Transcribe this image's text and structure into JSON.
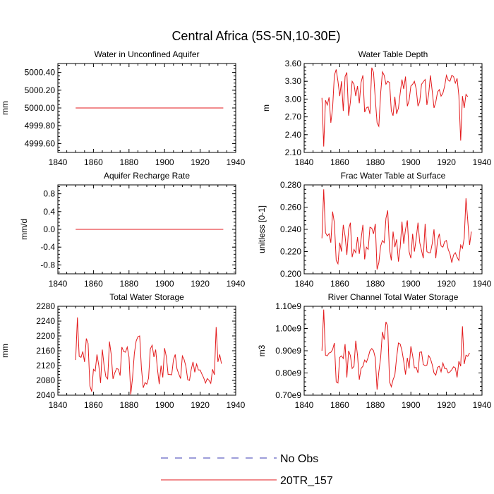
{
  "figure": {
    "title": "Central Africa (5S-5N,10-30E)",
    "legend": [
      {
        "label": "No Obs",
        "color": "#3b3bb3",
        "dash": true
      },
      {
        "label": "20TR_157",
        "color": "#e31a1c",
        "dash": false
      }
    ]
  },
  "chart_data": [
    {
      "type": "line",
      "title": "Water in Unconfined Aquifer",
      "ylabel": "mm",
      "xlim": [
        1840,
        1940
      ],
      "ylim": [
        4999.5,
        5000.5
      ],
      "xticks": [
        "1840",
        "1860",
        "1880",
        "1900",
        "1920",
        "1940"
      ],
      "yticks": [
        "4999.60",
        "4999.80",
        "5000.00",
        "5000.20",
        "5000.40"
      ],
      "ytick_values": [
        4999.6,
        4999.8,
        5000.0,
        5000.2,
        5000.4
      ],
      "series": [
        {
          "name": "20TR_157",
          "x_start": 1850,
          "x_step": 1,
          "values": [
            5000,
            5000,
            5000,
            5000,
            5000,
            5000,
            5000,
            5000,
            5000,
            5000,
            5000,
            5000,
            5000,
            5000,
            5000,
            5000,
            5000,
            5000,
            5000,
            5000,
            5000,
            5000,
            5000,
            5000,
            5000,
            5000,
            5000,
            5000,
            5000,
            5000,
            5000,
            5000,
            5000,
            5000,
            5000,
            5000,
            5000,
            5000,
            5000,
            5000,
            5000,
            5000,
            5000,
            5000,
            5000,
            5000,
            5000,
            5000,
            5000,
            5000,
            5000,
            5000,
            5000,
            5000,
            5000,
            5000,
            5000,
            5000,
            5000,
            5000,
            5000,
            5000,
            5000,
            5000,
            5000,
            5000,
            5000,
            5000,
            5000,
            5000,
            5000,
            5000,
            5000,
            5000,
            5000,
            5000,
            5000,
            5000,
            5000,
            5000,
            5000,
            5000,
            5000,
            5000
          ]
        }
      ]
    },
    {
      "type": "line",
      "title": "Water Table Depth",
      "ylabel": "m",
      "xlim": [
        1840,
        1940
      ],
      "ylim": [
        2.1,
        3.6
      ],
      "xticks": [
        "1840",
        "1860",
        "1880",
        "1900",
        "1920",
        "1940"
      ],
      "yticks": [
        "2.10",
        "2.40",
        "2.70",
        "3.00",
        "3.30",
        "3.60"
      ],
      "ytick_values": [
        2.1,
        2.4,
        2.7,
        3.0,
        3.3,
        3.6
      ],
      "series": [
        {
          "name": "20TR_157",
          "x_start": 1850,
          "x_step": 1,
          "values": [
            3.02,
            2.2,
            2.98,
            2.9,
            3.03,
            2.6,
            2.85,
            3.4,
            3.5,
            3.3,
            3.05,
            3.3,
            2.8,
            3.38,
            3.45,
            2.72,
            2.95,
            3.3,
            3.25,
            3.05,
            3.22,
            2.93,
            3.28,
            3.4,
            2.78,
            2.85,
            2.87,
            2.75,
            3.53,
            3.45,
            3.0,
            2.6,
            2.54,
            3.1,
            3.46,
            3.4,
            3.25,
            3.3,
            3.28,
            2.8,
            2.72,
            3.04,
            2.75,
            2.85,
            3.1,
            3.33,
            3.17,
            3.38,
            2.88,
            2.98,
            3.22,
            3.25,
            3.3,
            3.17,
            2.88,
            2.96,
            3.25,
            3.29,
            3.33,
            2.9,
            3.08,
            3.4,
            3.14,
            2.85,
            2.95,
            3.12,
            3.16,
            3.05,
            3.1,
            3.22,
            3.4,
            3.32,
            3.3,
            3.4,
            3.38,
            3.27,
            3.35,
            3.06,
            2.3,
            3.05,
            2.85,
            3.08,
            3.04
          ]
        }
      ]
    },
    {
      "type": "line",
      "title": "Aquifer Recharge Rate",
      "ylabel": "mm/d",
      "xlim": [
        1840,
        1940
      ],
      "ylim": [
        -1.0,
        1.0
      ],
      "xticks": [
        "1840",
        "1860",
        "1880",
        "1900",
        "1920",
        "1940"
      ],
      "yticks": [
        "-0.8",
        "-0.4",
        "0.0",
        "0.4",
        "0.8"
      ],
      "ytick_values": [
        -0.8,
        -0.4,
        0.0,
        0.4,
        0.8
      ],
      "series": [
        {
          "name": "20TR_157",
          "x_start": 1850,
          "x_step": 1,
          "values": [
            0,
            0,
            0,
            0,
            0,
            0,
            0,
            0,
            0,
            0,
            0,
            0,
            0,
            0,
            0,
            0,
            0,
            0,
            0,
            0,
            0,
            0,
            0,
            0,
            0,
            0,
            0,
            0,
            0,
            0,
            0,
            0,
            0,
            0,
            0,
            0,
            0,
            0,
            0,
            0,
            0,
            0,
            0,
            0,
            0,
            0,
            0,
            0,
            0,
            0,
            0,
            0,
            0,
            0,
            0,
            0,
            0,
            0,
            0,
            0,
            0,
            0,
            0,
            0,
            0,
            0,
            0,
            0,
            0,
            0,
            0,
            0,
            0,
            0,
            0,
            0,
            0,
            0,
            0,
            0,
            0,
            0,
            0,
            0
          ]
        }
      ]
    },
    {
      "type": "line",
      "title": "Frac Water Table at Surface",
      "ylabel": "unitless [0-1]",
      "xlim": [
        1840,
        1940
      ],
      "ylim": [
        0.2,
        0.28
      ],
      "xticks": [
        "1840",
        "1860",
        "1880",
        "1900",
        "1920",
        "1940"
      ],
      "yticks": [
        "0.200",
        "0.220",
        "0.240",
        "0.260",
        "0.280"
      ],
      "ytick_values": [
        0.2,
        0.22,
        0.24,
        0.26,
        0.28
      ],
      "series": [
        {
          "name": "20TR_157",
          "x_start": 1850,
          "x_step": 1,
          "values": [
            0.232,
            0.276,
            0.237,
            0.234,
            0.236,
            0.228,
            0.256,
            0.246,
            0.212,
            0.209,
            0.228,
            0.22,
            0.244,
            0.234,
            0.217,
            0.24,
            0.246,
            0.215,
            0.222,
            0.219,
            0.233,
            0.218,
            0.231,
            0.244,
            0.213,
            0.224,
            0.222,
            0.242,
            0.241,
            0.236,
            0.245,
            0.204,
            0.21,
            0.225,
            0.23,
            0.228,
            0.25,
            0.257,
            0.222,
            0.212,
            0.238,
            0.224,
            0.231,
            0.211,
            0.224,
            0.247,
            0.227,
            0.24,
            0.248,
            0.22,
            0.214,
            0.236,
            0.22,
            0.232,
            0.246,
            0.228,
            0.221,
            0.214,
            0.245,
            0.22,
            0.219,
            0.219,
            0.227,
            0.24,
            0.214,
            0.23,
            0.236,
            0.225,
            0.224,
            0.229,
            0.23,
            0.222,
            0.218,
            0.21,
            0.217,
            0.219,
            0.215,
            0.212,
            0.226,
            0.223,
            0.232,
            0.268,
            0.248,
            0.226,
            0.238
          ]
        }
      ]
    },
    {
      "type": "line",
      "title": "Total Water Storage",
      "ylabel": "mm",
      "xlim": [
        1840,
        1940
      ],
      "ylim": [
        2040,
        2280
      ],
      "xticks": [
        "1840",
        "1860",
        "1880",
        "1900",
        "1920",
        "1940"
      ],
      "yticks": [
        "2040",
        "2080",
        "2120",
        "2160",
        "2200",
        "2240",
        "2280"
      ],
      "ytick_values": [
        2040,
        2080,
        2120,
        2160,
        2200,
        2240,
        2280
      ],
      "series": [
        {
          "name": "20TR_157",
          "x_start": 1850,
          "x_step": 1,
          "values": [
            2135,
            2250,
            2145,
            2142,
            2158,
            2130,
            2193,
            2180,
            2065,
            2050,
            2110,
            2105,
            2150,
            2120,
            2073,
            2163,
            2120,
            2090,
            2084,
            2185,
            2150,
            2084,
            2100,
            2112,
            2110,
            2093,
            2170,
            2158,
            2156,
            2170,
            2143,
            2042,
            2087,
            2153,
            2186,
            2198,
            2200,
            2113,
            2060,
            2074,
            2070,
            2086,
            2165,
            2175,
            2143,
            2163,
            2111,
            2070,
            2120,
            2088,
            2167,
            2144,
            2096,
            2096,
            2095,
            2136,
            2150,
            2111,
            2097,
            2085,
            2146,
            2136,
            2118,
            2082,
            2080,
            2110,
            2130,
            2102,
            2124,
            2108,
            2108,
            2097,
            2087,
            2073,
            2085,
            2080,
            2072,
            2110,
            2095,
            2224,
            2130,
            2150,
            2125
          ]
        }
      ]
    },
    {
      "type": "line",
      "title": "River Channel Total Water Storage",
      "ylabel": "m3",
      "xlim": [
        1840,
        1940
      ],
      "ylim": [
        700000000,
        1100000000
      ],
      "xticks": [
        "1840",
        "1860",
        "1880",
        "1900",
        "1920",
        "1940"
      ],
      "yticks": [
        "0.70e9",
        "0.80e9",
        "0.90e9",
        "1.00e9",
        "1.10e9"
      ],
      "ytick_values": [
        700000000,
        800000000,
        900000000,
        1000000000,
        1100000000
      ],
      "series": [
        {
          "name": "20TR_157",
          "x_start": 1850,
          "x_step": 1,
          "values": [
            900000000,
            1085000000,
            880000000,
            877000000,
            890000000,
            893000000,
            905000000,
            935000000,
            760000000,
            755000000,
            870000000,
            877000000,
            865000000,
            930000000,
            780000000,
            900000000,
            878000000,
            820000000,
            830000000,
            945000000,
            880000000,
            770000000,
            820000000,
            830000000,
            858000000,
            848000000,
            870000000,
            900000000,
            910000000,
            900000000,
            868000000,
            725000000,
            805000000,
            870000000,
            985000000,
            950000000,
            1030000000,
            1010000000,
            760000000,
            738000000,
            770000000,
            790000000,
            870000000,
            935000000,
            930000000,
            900000000,
            852000000,
            793000000,
            868000000,
            820000000,
            920000000,
            878000000,
            823000000,
            825000000,
            800000000,
            893000000,
            895000000,
            838000000,
            833000000,
            835000000,
            878000000,
            865000000,
            838000000,
            800000000,
            790000000,
            825000000,
            830000000,
            805000000,
            845000000,
            820000000,
            820000000,
            800000000,
            805000000,
            815000000,
            828000000,
            823000000,
            780000000,
            853000000,
            830000000,
            1010000000,
            840000000,
            880000000,
            875000000,
            890000000
          ]
        }
      ]
    }
  ]
}
